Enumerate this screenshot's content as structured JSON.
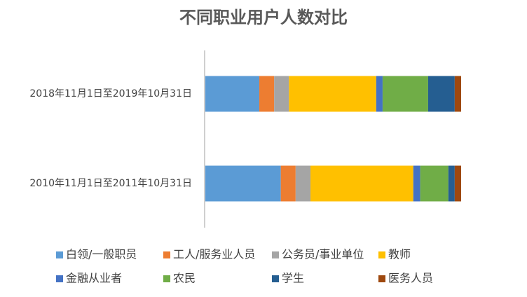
{
  "chart_data": {
    "type": "stacked-bar-horizontal",
    "title": "不同职业用户人数对比",
    "categories": [
      "2018年11月1日至2019年10月31日",
      "2010年11月1日至2011年10月31日"
    ],
    "series": [
      {
        "name": "白领/一般职员",
        "color": "#5b9bd5",
        "values": [
          21.1,
          29.5
        ]
      },
      {
        "name": "工人/服务业人员",
        "color": "#ed7d31",
        "values": [
          5.8,
          5.8
        ]
      },
      {
        "name": "公务员/事业单位",
        "color": "#a5a5a5",
        "values": [
          5.8,
          5.8
        ]
      },
      {
        "name": "教师",
        "color": "#ffc000",
        "values": [
          34.1,
          40.2
        ]
      },
      {
        "name": "金融从业者",
        "color": "#4472c4",
        "values": [
          2.5,
          2.7
        ]
      },
      {
        "name": "农民",
        "color": "#70ad47",
        "values": [
          17.8,
          11.0
        ]
      },
      {
        "name": "学生",
        "color": "#255e91",
        "values": [
          10.4,
          2.5
        ]
      },
      {
        "name": "医务人员",
        "color": "#9e480e",
        "values": [
          2.5,
          2.5
        ]
      }
    ],
    "xlim": [
      0,
      100
    ],
    "legend": "bottom"
  }
}
